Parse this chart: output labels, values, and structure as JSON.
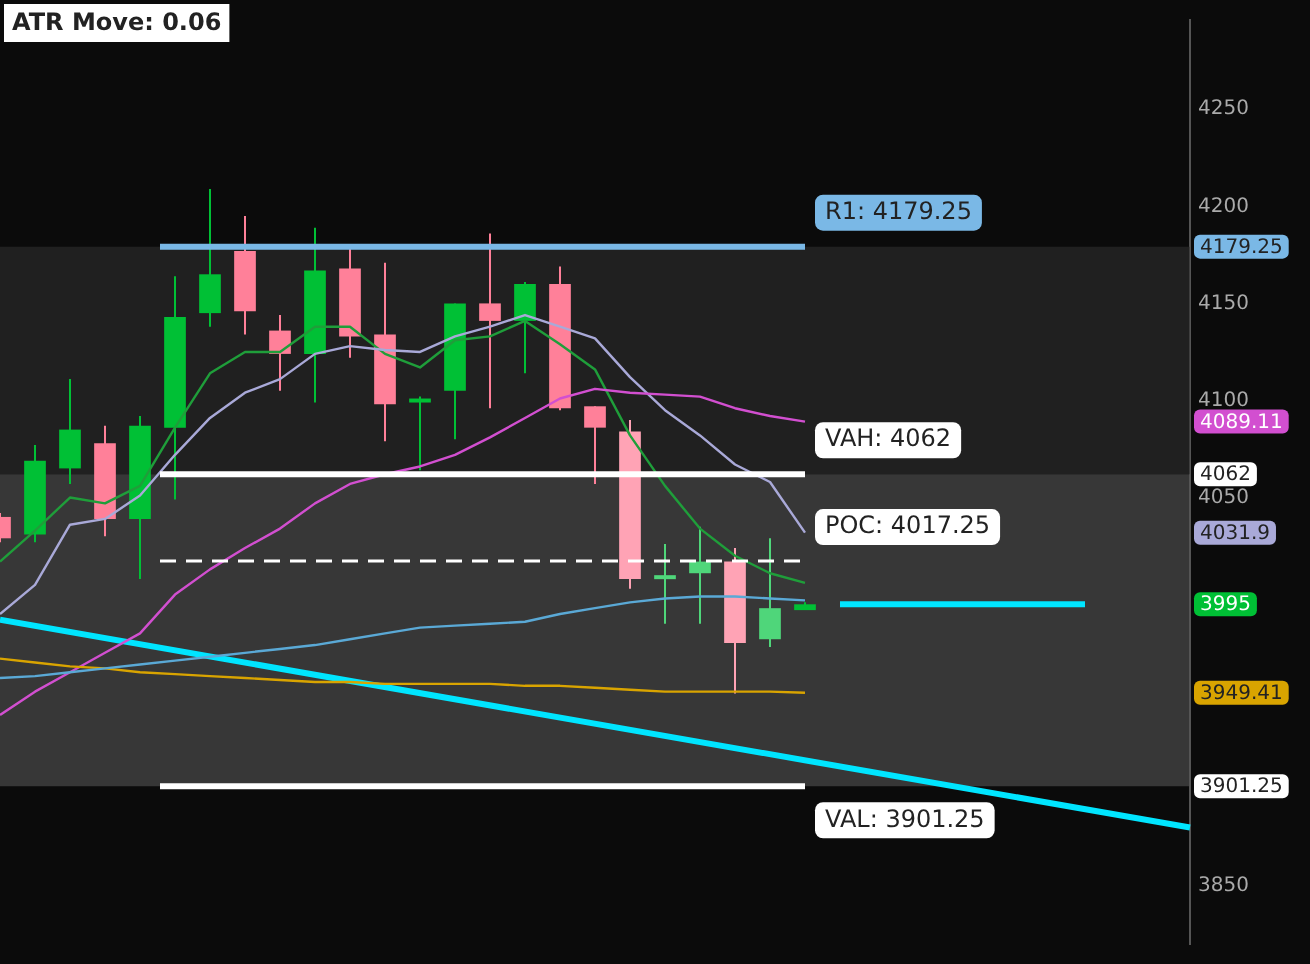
{
  "chart_data": {
    "type": "candlestick",
    "categories": [
      null,
      null,
      null,
      null,
      null,
      null,
      null,
      null,
      null,
      null,
      null,
      null,
      null,
      null,
      null,
      null,
      null,
      null,
      null,
      null,
      null,
      null,
      null,
      null,
      null,
      null,
      null,
      null,
      null,
      null,
      null,
      null,
      null,
      null,
      null
    ],
    "ohlc": [
      [
        4040,
        4042,
        4027,
        4029
      ],
      [
        4031,
        4077,
        4027,
        4069
      ],
      [
        4065,
        4111,
        4057,
        4085
      ],
      [
        4078,
        4087,
        4030,
        4039
      ],
      [
        4039,
        4092,
        4008,
        4087
      ],
      [
        4086,
        4164,
        4049,
        4143
      ],
      [
        4145,
        4209,
        4138,
        4165
      ],
      [
        4177,
        4195,
        4134,
        4146
      ],
      [
        4136,
        4144,
        4105,
        4124
      ],
      [
        4124,
        4189,
        4099,
        4167
      ],
      [
        4168,
        4178,
        4122,
        4133
      ],
      [
        4134,
        4171,
        4079,
        4098
      ],
      [
        4099,
        4102,
        4064,
        4101
      ],
      [
        4105,
        4150,
        4080,
        4150
      ],
      [
        4150,
        4186,
        4096,
        4141
      ],
      [
        4141,
        4161,
        4114,
        4160
      ],
      [
        4160,
        4169,
        4095,
        4096
      ],
      [
        4097,
        4097,
        4057,
        4086
      ],
      [
        4084,
        4090,
        4003,
        4008
      ],
      [
        4008,
        4026,
        3985,
        4010
      ],
      [
        4011,
        4035,
        3985,
        4017
      ],
      [
        4017,
        4024,
        3949,
        3975
      ],
      [
        3977,
        4029,
        3973,
        3993
      ],
      [
        3992,
        3996,
        3992,
        3995
      ],
      null,
      null,
      null,
      null,
      null,
      null,
      null,
      null,
      null,
      null,
      null
    ],
    "colors": [
      "#ff8099",
      "#00c035",
      "#00c035",
      "#ff8099",
      "#00c035",
      "#00c035",
      "#00c035",
      "#ff8099",
      "#ff8099",
      "#00c035",
      "#ff8099",
      "#ff8099",
      "#00c035",
      "#00c035",
      "#ff8099",
      "#00c035",
      "#ff8099",
      "#ff8099",
      "#ffa3b5",
      "#4fd67a",
      "#4fd67a",
      "#ffa3b5",
      "#4fd67a",
      "#00c035",
      null,
      null,
      null,
      null,
      null,
      null,
      null,
      null,
      null,
      null,
      null
    ],
    "series": [
      {
        "type": "line",
        "color": "#5aa9d6",
        "values": [
          3957,
          3958,
          3960,
          3962,
          3964,
          3966,
          3968,
          3970,
          3972,
          3974,
          3977,
          3980,
          3983,
          3984,
          3985,
          3986,
          3990,
          3993,
          3996,
          3998,
          3999,
          3999,
          3998,
          3997,
          null,
          null,
          null,
          null,
          null,
          null,
          null,
          null,
          null,
          null,
          null
        ]
      },
      {
        "type": "line",
        "color": "#d9a400",
        "values": [
          3967,
          3965,
          3963,
          3962,
          3960,
          3959,
          3958,
          3957,
          3956,
          3955,
          3955,
          3954,
          3954,
          3954,
          3954,
          3953,
          3953,
          3952,
          3951,
          3950,
          3950,
          3950,
          3950,
          3949.41,
          null,
          null,
          null,
          null,
          null,
          null,
          null,
          null,
          null,
          null,
          null
        ]
      },
      {
        "type": "line",
        "color": "#d24fd0",
        "values": [
          3938,
          3950,
          3960,
          3970,
          3980,
          4000,
          4013,
          4024,
          4034,
          4047,
          4057,
          4062,
          4066,
          4072,
          4081,
          4091,
          4101,
          4106,
          4104,
          4103,
          4102,
          4096,
          4092,
          4089.11,
          null,
          null,
          null,
          null,
          null,
          null,
          null,
          null,
          null,
          null,
          null
        ]
      },
      {
        "type": "line",
        "color": "#a9a9d8",
        "values": [
          3990,
          4005,
          4036,
          4039,
          4051,
          4072,
          4091,
          4104,
          4111,
          4124,
          4128,
          4126,
          4125,
          4133,
          4138,
          4144,
          4138,
          4132,
          4112,
          4095,
          4082,
          4067,
          4058,
          4031.9,
          null,
          null,
          null,
          null,
          null,
          null,
          null,
          null,
          null,
          null,
          null
        ]
      },
      {
        "type": "line",
        "color": "#1f9e3a",
        "values": [
          4017,
          4033,
          4050,
          4047,
          4056,
          4086,
          4114,
          4125,
          4125,
          4138,
          4138,
          4124,
          4117,
          4131,
          4133,
          4141,
          4129,
          4116,
          4082,
          4056,
          4034,
          4020,
          4011,
          4006,
          null,
          null,
          null,
          null,
          null,
          null,
          null,
          null,
          null,
          null,
          null
        ]
      },
      {
        "type": "line",
        "color": "#00e5ff",
        "values": [
          3987,
          null,
          null,
          null,
          null,
          null,
          null,
          null,
          null,
          null,
          null,
          null,
          null,
          null,
          null,
          null,
          null,
          null,
          null,
          null,
          null,
          null,
          null,
          null,
          null,
          null,
          null,
          null,
          null,
          null,
          null,
          null,
          null,
          null,
          3880
        ]
      },
      {
        "type": "line",
        "color": "#00e5ff",
        "values": [
          null,
          null,
          null,
          null,
          null,
          null,
          null,
          null,
          null,
          null,
          null,
          null,
          null,
          null,
          null,
          null,
          null,
          null,
          null,
          null,
          null,
          null,
          null,
          null,
          3995,
          3995,
          3995,
          3995,
          3995,
          3995,
          3995,
          3995,
          null,
          null,
          null
        ]
      }
    ],
    "ref_lines": [
      {
        "axis": "y",
        "value": 4179.25,
        "label": "R1: 4179.25",
        "color": "#7ab8e6"
      },
      {
        "axis": "y",
        "value": 4062,
        "label": "VAH: 4062",
        "color": "#ffffff"
      },
      {
        "axis": "y",
        "value": 4017.25,
        "label": "POC: 4017.25",
        "color": "#ffffff",
        "line_style": "dashed"
      },
      {
        "axis": "y",
        "value": 3901.25,
        "label": "VAL: 3901.25",
        "color": "#ffffff"
      }
    ],
    "bands": [
      {
        "axis": "y",
        "from": 3901.25,
        "to": 4062,
        "color": "#555555"
      },
      {
        "axis": "y",
        "from": 4062,
        "to": 4179.25,
        "color": "#2e2e2e"
      }
    ],
    "annotations": [
      "ATR Move: 0.06",
      "4179.25",
      "4089.11",
      "4062",
      "4031.9",
      "3995",
      "3949.41",
      "3901.25"
    ],
    "ylim": [
      3820,
      4296
    ],
    "yticks": [
      3850,
      4050,
      4100,
      4150,
      4200,
      4250
    ],
    "tick_labels": "y",
    "grid": false,
    "legend": false
  }
}
